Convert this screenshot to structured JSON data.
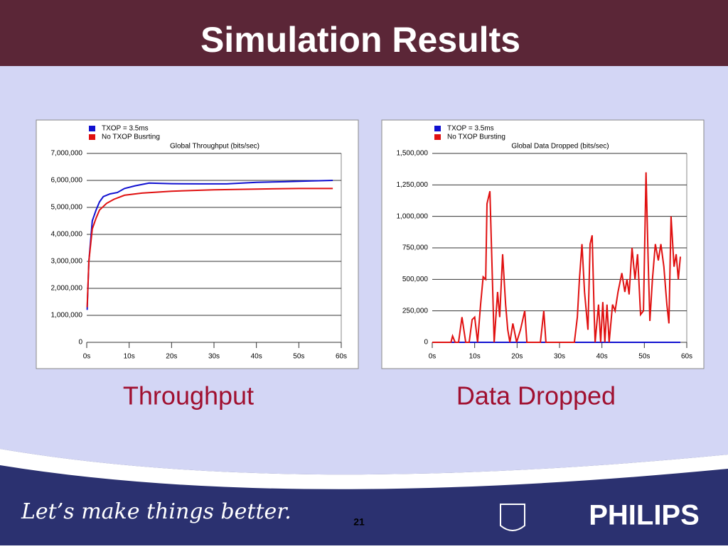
{
  "slide": {
    "title": "Simulation Results",
    "captions": [
      "Throughput",
      "Data Dropped"
    ],
    "slogan": "Let’s make things better.",
    "page": "21",
    "brand": "PHILIPS"
  },
  "chart_data": [
    {
      "type": "line",
      "title": "Global Throughput (bits/sec)",
      "xlim": [
        0,
        60
      ],
      "xticks": [
        {
          "value": 0,
          "label": "0s"
        },
        {
          "value": 10,
          "label": "10s"
        },
        {
          "value": 20,
          "label": "20s"
        },
        {
          "value": 30,
          "label": "30s"
        },
        {
          "value": 40,
          "label": "40s"
        },
        {
          "value": 50,
          "label": "50s"
        },
        {
          "value": 60,
          "label": "60s"
        }
      ],
      "ylim": [
        0,
        7000000
      ],
      "yticks": [
        0,
        {
          "value": 1000000,
          "label": "1,000,000"
        },
        {
          "value": 2000000,
          "label": "2,000,000"
        },
        {
          "value": 3000000,
          "label": "3,000,000"
        },
        {
          "value": 4000000,
          "label": "4,000,000"
        },
        {
          "value": 5000000,
          "label": "5,000,000"
        },
        {
          "value": 6000000,
          "label": "6,000,000"
        },
        {
          "value": 7000000,
          "label": "7,000,000"
        }
      ],
      "grid": true,
      "series": [
        {
          "name": "TXOP = 3.5ms",
          "color": "#1010d0",
          "x": [
            0.1,
            0.5,
            1.3,
            2.2,
            3,
            3.9,
            5.5,
            7.2,
            8.9,
            11.4,
            14.7,
            20,
            26.5,
            33,
            40,
            46.5,
            53,
            58
          ],
          "values": [
            1200000,
            3000000,
            4500000,
            4900000,
            5200000,
            5400000,
            5500000,
            5550000,
            5700000,
            5800000,
            5900000,
            5880000,
            5870000,
            5870000,
            5930000,
            5950000,
            5980000,
            6000000
          ]
        },
        {
          "name": "No TXOP Busrting",
          "color": "#e01010",
          "x": [
            0.1,
            0.5,
            1.3,
            2.2,
            3,
            4.7,
            6.4,
            8.9,
            13,
            20,
            30,
            40,
            50,
            58
          ],
          "values": [
            1300000,
            3000000,
            4200000,
            4600000,
            4900000,
            5150000,
            5300000,
            5450000,
            5530000,
            5600000,
            5650000,
            5680000,
            5700000,
            5700000
          ]
        }
      ]
    },
    {
      "type": "line",
      "title": "Global Data Dropped (bits/sec)",
      "xlim": [
        0,
        60
      ],
      "xticks": [
        {
          "value": 0,
          "label": "0s"
        },
        {
          "value": 10,
          "label": "10s"
        },
        {
          "value": 20,
          "label": "20s"
        },
        {
          "value": 30,
          "label": "30s"
        },
        {
          "value": 40,
          "label": "40s"
        },
        {
          "value": 50,
          "label": "50s"
        },
        {
          "value": 60,
          "label": "60s"
        }
      ],
      "ylim": [
        0,
        1500000
      ],
      "yticks": [
        0,
        {
          "value": 250000,
          "label": "250,000"
        },
        {
          "value": 500000,
          "label": "500,000"
        },
        {
          "value": 750000,
          "label": "750,000"
        },
        {
          "value": 1000000,
          "label": "1,000,000"
        },
        {
          "value": 1250000,
          "label": "1,250,000"
        },
        {
          "value": 1500000,
          "label": "1,500,000"
        }
      ],
      "grid": true,
      "series": [
        {
          "name": "TXOP = 3.5ms",
          "color": "#1010d0",
          "x": [
            0,
            58.5
          ],
          "values": [
            0,
            0
          ]
        },
        {
          "name": "No TXOP Bursting",
          "color": "#e01010",
          "x": [
            0,
            4.4,
            4.8,
            5.4,
            6.2,
            7,
            7.9,
            8.7,
            9.4,
            10,
            10.7,
            11.4,
            12,
            12.6,
            12.9,
            13.6,
            14.1,
            14.6,
            15.4,
            15.9,
            16.6,
            17.3,
            17.8,
            18.3,
            19,
            19.9,
            20.8,
            21.8,
            22.3,
            25.5,
            26.3,
            26.8,
            33.5,
            34.2,
            34.7,
            35.3,
            35.9,
            36.7,
            37.2,
            37.7,
            38.2,
            38.4,
            39.2,
            39.7,
            40.2,
            40.7,
            41.2,
            41.7,
            42.5,
            43.1,
            43.8,
            44.7,
            45.4,
            45.9,
            46.4,
            47.1,
            47.8,
            48.4,
            49.1,
            49.8,
            50.4,
            50.9,
            51.3,
            51.9,
            52.6,
            53.3,
            53.9,
            54.6,
            55.3,
            55.8,
            56.3,
            57,
            57.5,
            58,
            58.5
          ],
          "values": [
            0,
            0,
            50000,
            0,
            0,
            200000,
            0,
            0,
            180000,
            200000,
            0,
            300000,
            520000,
            500000,
            1100000,
            1200000,
            600000,
            0,
            400000,
            200000,
            700000,
            300000,
            100000,
            0,
            150000,
            0,
            100000,
            250000,
            0,
            0,
            250000,
            0,
            0,
            200000,
            500000,
            780000,
            400000,
            100000,
            780000,
            850000,
            200000,
            0,
            300000,
            0,
            320000,
            0,
            300000,
            0,
            300000,
            250000,
            400000,
            550000,
            400000,
            500000,
            380000,
            750000,
            500000,
            700000,
            220000,
            250000,
            1350000,
            650000,
            170000,
            500000,
            780000,
            650000,
            780000,
            600000,
            300000,
            150000,
            1000000,
            600000,
            700000,
            500000,
            680000
          ]
        }
      ]
    }
  ]
}
